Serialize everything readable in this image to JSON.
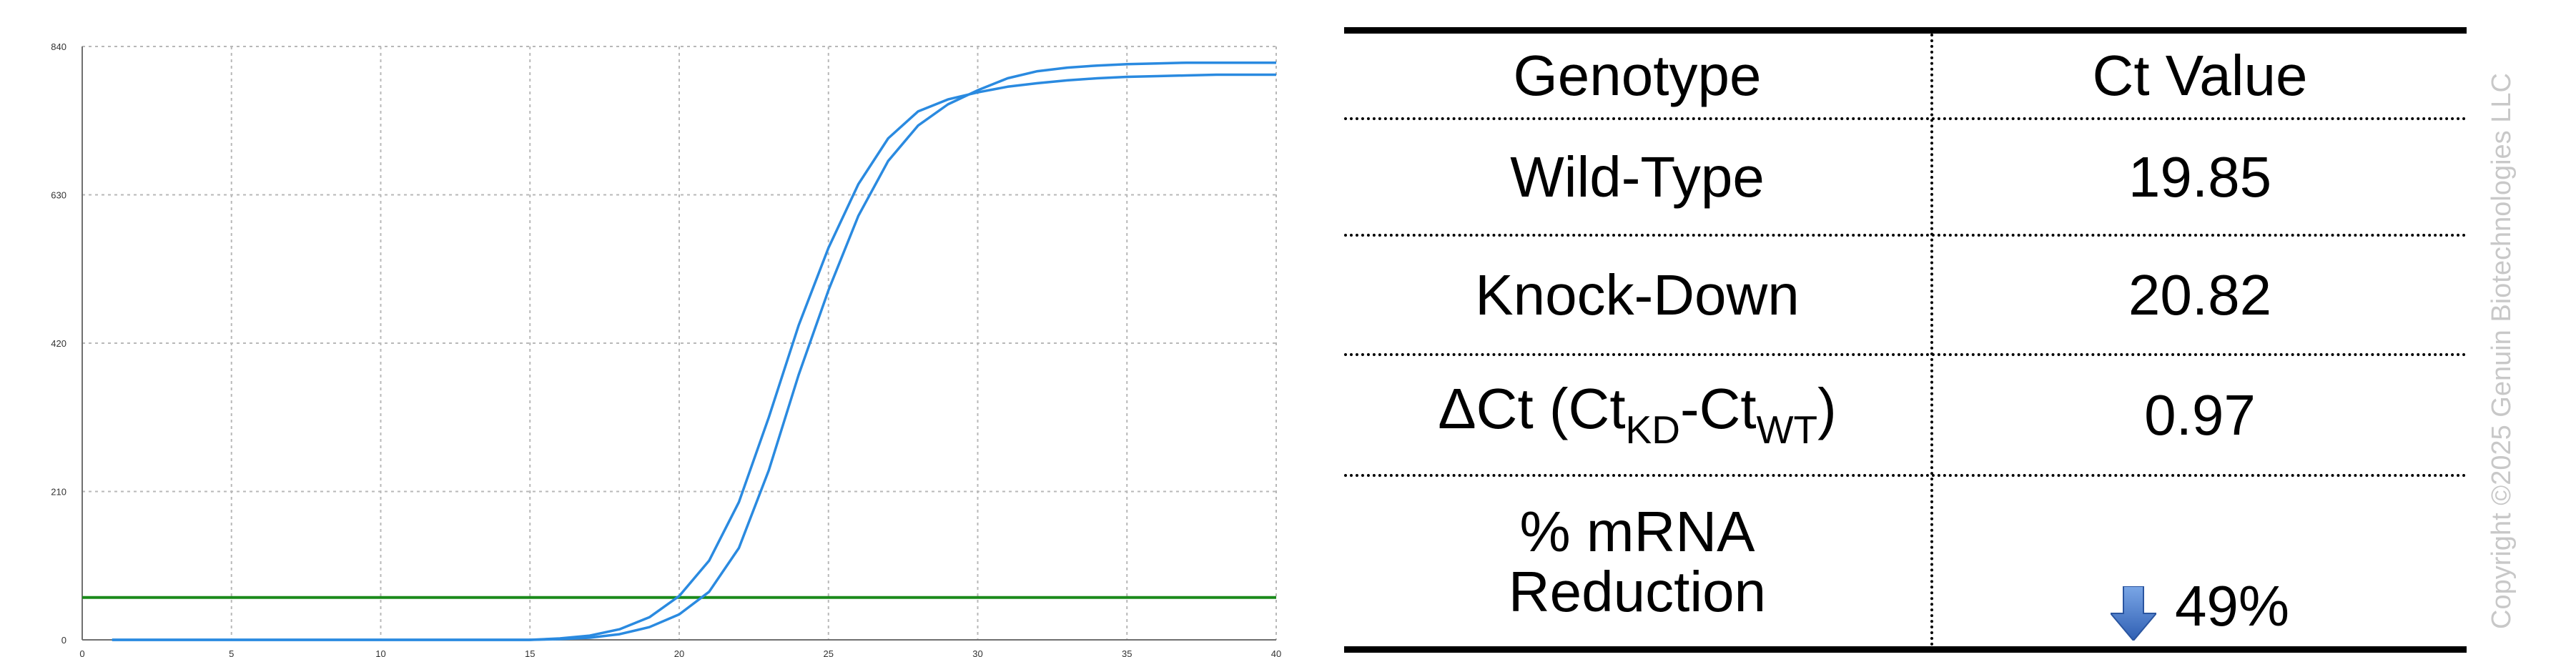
{
  "chart_data": {
    "type": "line",
    "xlim": [
      0,
      40
    ],
    "ylim": [
      0,
      840
    ],
    "x_ticks": [
      "0",
      "5",
      "10",
      "15",
      "20",
      "25",
      "30",
      "35",
      "40"
    ],
    "y_ticks": [
      "0",
      "210",
      "420",
      "630",
      "840"
    ],
    "grid": true,
    "threshold": 60,
    "colors": {
      "curves": "#2a8ae0",
      "threshold": "#1a8a1a",
      "grid": "#b8b8b8",
      "axis": "#707070"
    },
    "series": [
      {
        "x": [
          1,
          15,
          16,
          17,
          18,
          19,
          20,
          21,
          22,
          23,
          24,
          25,
          26,
          27,
          28,
          29,
          30,
          31,
          32,
          33,
          34,
          35,
          36,
          37,
          38,
          39,
          40
        ],
        "values": [
          0,
          0,
          2,
          6,
          15,
          32,
          62,
          112,
          195,
          315,
          445,
          555,
          645,
          710,
          748,
          765,
          775,
          783,
          788,
          792,
          795,
          797,
          798,
          799,
          800,
          800,
          800
        ]
      },
      {
        "x": [
          1,
          15,
          16,
          17,
          18,
          19,
          20,
          21,
          22,
          23,
          24,
          25,
          26,
          27,
          28,
          29,
          30,
          31,
          32,
          33,
          34,
          35,
          36,
          37,
          38,
          39,
          40
        ],
        "values": [
          0,
          0,
          1,
          3,
          8,
          18,
          36,
          68,
          130,
          240,
          375,
          495,
          600,
          678,
          728,
          758,
          778,
          795,
          805,
          810,
          813,
          815,
          816,
          817,
          817,
          817,
          817
        ]
      }
    ]
  },
  "table": {
    "headers": [
      "Genotype",
      "Ct Value"
    ],
    "rows": [
      {
        "label": "Wild-Type",
        "value": "19.85"
      },
      {
        "label": "Knock-Down",
        "value": "20.82"
      }
    ],
    "delta": {
      "symbol": "ΔCt (Ct",
      "sub1": "KD",
      "mid": "-Ct",
      "sub2": "WT",
      "end": ")",
      "value": "0.97"
    },
    "reduction": {
      "line1": "% mRNA",
      "line2": "Reduction",
      "value": "49%",
      "arrow_color": "#3a6fc4",
      "arrow_icon": "down-arrow-icon"
    }
  },
  "copyright": "Copyright ©2025 Genuin Biotechnologies LLC"
}
